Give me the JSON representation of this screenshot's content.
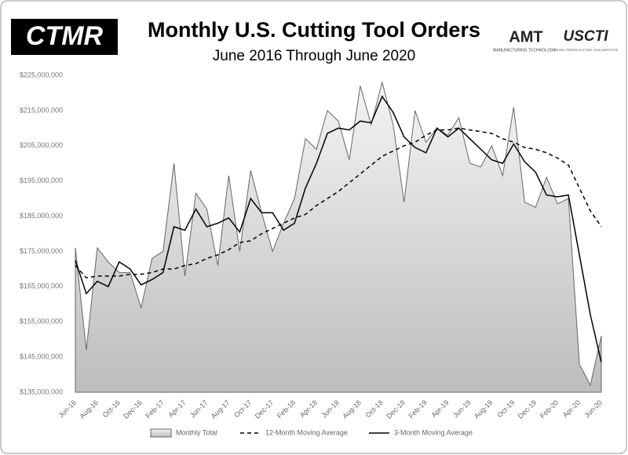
{
  "logos": {
    "left": "CTMR",
    "amt": "AMT",
    "amt_sub": "MANUFACTURING TECHNOLOGY",
    "right": "USCTI",
    "right_sub": "UNITED STATES CUTTING TOOL INSTITUTE"
  },
  "chart_data": {
    "type": "area",
    "title": "Monthly U.S. Cutting Tool Orders",
    "subtitle": "June 2016 Through June 2020",
    "categories": [
      "Jun-16",
      null,
      "Aug-16",
      null,
      "Oct-16",
      null,
      "Dec-16",
      null,
      "Feb-17",
      null,
      "Apr-17",
      null,
      "Jun-17",
      null,
      "Aug-17",
      null,
      "Oct-17",
      null,
      "Dec-17",
      null,
      "Feb-18",
      null,
      "Apr-18",
      null,
      "Jun-18",
      null,
      "Aug-18",
      null,
      "Oct-18",
      null,
      "Dec-18",
      null,
      "Feb-19",
      null,
      "Apr-19",
      null,
      "Jun-19",
      null,
      "Aug-19",
      null,
      "Oct-19",
      null,
      "Dec-19",
      null,
      "Feb-20",
      null,
      "Apr-20",
      null,
      "Jun-20"
    ],
    "series": [
      {
        "name": "Monthly Total",
        "color": "#666666",
        "style": "area",
        "values": [
          176000000,
          147000000,
          176000000,
          172000000,
          169000000,
          169000000,
          159000000,
          173000000,
          175000000,
          200000000,
          168000000,
          191500000,
          187000000,
          171000000,
          196500000,
          175000000,
          198000000,
          186000000,
          175000000,
          183000000,
          190000000,
          207000000,
          204000000,
          215000000,
          212000000,
          201000000,
          222000000,
          211000000,
          223000000,
          211000000,
          189000000,
          215000000,
          206000000,
          210000000,
          208000000,
          213000000,
          200000000,
          199000000,
          205000000,
          196500000,
          216000000,
          189000000,
          187500000,
          196000000,
          188500000,
          190000000,
          143000000,
          137000000,
          151000000
        ]
      },
      {
        "name": "12-Month Moving Average",
        "color": "#000000",
        "style": "dashed",
        "values": [
          171000000,
          167500000,
          168000000,
          168000000,
          168000000,
          168500000,
          168500000,
          169000000,
          170000000,
          170000000,
          171000000,
          171500000,
          173000000,
          174000000,
          175500000,
          177500000,
          178000000,
          180000000,
          181500000,
          183000000,
          184500000,
          185500000,
          188000000,
          190000000,
          192000000,
          194500000,
          197000000,
          199500000,
          202000000,
          203500000,
          205000000,
          206000000,
          208000000,
          209500000,
          209500000,
          210000000,
          209500000,
          209000000,
          208500000,
          207000000,
          206000000,
          204500000,
          204000000,
          203000000,
          201500000,
          199500000,
          193000000,
          186500000,
          182000000
        ]
      },
      {
        "name": "3-Month Moving Average",
        "color": "#000000",
        "style": "solid",
        "values": [
          172500000,
          163000000,
          166500000,
          165000000,
          172000000,
          170000000,
          165500000,
          167000000,
          169000000,
          182000000,
          181000000,
          187000000,
          182000000,
          183000000,
          184500000,
          180500000,
          190000000,
          186000000,
          186000000,
          181000000,
          183000000,
          193000000,
          200000000,
          208500000,
          210000000,
          209500000,
          212000000,
          211500000,
          219000000,
          214500000,
          207500000,
          204500000,
          203000000,
          210000000,
          207500000,
          210000000,
          207000000,
          204000000,
          201000000,
          200000000,
          205500000,
          200500000,
          197500000,
          191000000,
          190500000,
          191000000,
          174000000,
          157000000,
          143500000
        ]
      }
    ],
    "ylim": [
      135000000,
      225000000
    ],
    "yticks": [
      {
        "value": 135000000,
        "label": "$135,000,000"
      },
      {
        "value": 145000000,
        "label": "$145,000,000"
      },
      {
        "value": 155000000,
        "label": "$155,000,000"
      },
      {
        "value": 165000000,
        "label": "$165,000,000"
      },
      {
        "value": 175000000,
        "label": "$175,000,000"
      },
      {
        "value": 185000000,
        "label": "$185,000,000"
      },
      {
        "value": 195000000,
        "label": "$195,000,000"
      },
      {
        "value": 205000000,
        "label": "$205,000,000"
      },
      {
        "value": 215000000,
        "label": "$215,000,000"
      },
      {
        "value": 225000000,
        "label": "$225,000,000"
      }
    ],
    "grid": false,
    "legend": "bottom"
  }
}
